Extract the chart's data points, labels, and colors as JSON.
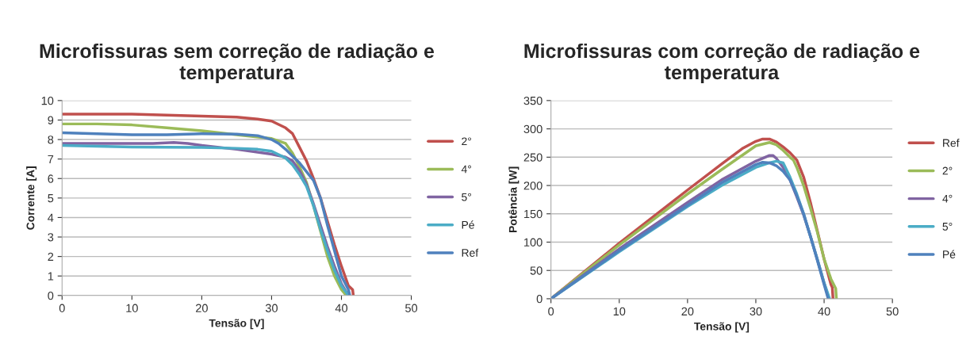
{
  "chart_data": [
    {
      "type": "line",
      "title": "Microfissuras sem correção de radiação e temperatura",
      "xlabel": "Tensão [V]",
      "ylabel": "Corrente [A]",
      "xlim": [
        0,
        50
      ],
      "xticks": [
        0,
        10,
        20,
        30,
        40,
        50
      ],
      "ylim": [
        0,
        10
      ],
      "yticks": [
        0,
        1,
        2,
        3,
        4,
        5,
        6,
        7,
        8,
        9,
        10
      ],
      "grid": "y",
      "legend": "right",
      "marker": "none",
      "line_style": "solid",
      "series": [
        {
          "name": "2°",
          "color": "#c0504d",
          "x": [
            0,
            10,
            20,
            25,
            28,
            30,
            32,
            33,
            34,
            35,
            36,
            37,
            38,
            39,
            40,
            41,
            41.6,
            41.7
          ],
          "values": [
            9.3,
            9.3,
            9.2,
            9.15,
            9.05,
            8.95,
            8.6,
            8.3,
            7.6,
            6.9,
            6.0,
            5.0,
            3.8,
            2.6,
            1.5,
            0.5,
            0.3,
            0
          ]
        },
        {
          "name": "4°",
          "color": "#9bbb59",
          "x": [
            0,
            5,
            10,
            15,
            20,
            25,
            30,
            32,
            33,
            34,
            35,
            36,
            37,
            38,
            39,
            40,
            40.7
          ],
          "values": [
            8.8,
            8.8,
            8.75,
            8.6,
            8.45,
            8.25,
            8.05,
            7.8,
            7.3,
            6.6,
            5.8,
            4.6,
            3.3,
            2.0,
            1.0,
            0.3,
            0
          ]
        },
        {
          "name": "5°",
          "color": "#8064a2",
          "x": [
            0,
            10,
            13,
            16,
            18,
            20,
            25,
            30,
            32,
            33,
            34,
            35,
            36,
            37,
            38,
            39,
            40,
            41
          ],
          "values": [
            7.8,
            7.8,
            7.8,
            7.85,
            7.8,
            7.7,
            7.5,
            7.25,
            7.1,
            6.9,
            6.4,
            5.7,
            4.7,
            3.6,
            2.5,
            1.5,
            0.6,
            0
          ]
        },
        {
          "name": "Pé",
          "color": "#4bacc6",
          "x": [
            0,
            10,
            20,
            25,
            28,
            30,
            32,
            33,
            34,
            35,
            36,
            37,
            38,
            39,
            40,
            41
          ],
          "values": [
            7.7,
            7.62,
            7.6,
            7.55,
            7.5,
            7.4,
            7.05,
            6.7,
            6.2,
            5.6,
            4.6,
            3.4,
            2.3,
            1.3,
            0.5,
            0
          ]
        },
        {
          "name": "Ref",
          "color": "#4f81bd",
          "x": [
            0,
            5,
            10,
            15,
            20,
            25,
            28,
            30,
            31,
            32,
            33,
            34,
            35,
            36,
            37,
            38,
            39,
            40,
            41,
            41.2
          ],
          "values": [
            8.35,
            8.3,
            8.25,
            8.25,
            8.3,
            8.28,
            8.2,
            8.0,
            7.8,
            7.5,
            7.15,
            6.8,
            6.35,
            5.9,
            5.0,
            3.6,
            2.3,
            1.0,
            0.3,
            0
          ]
        }
      ]
    },
    {
      "type": "line",
      "title": "Microfissuras com correção de radiação e temperatura",
      "xlabel": "Tensão [V]",
      "ylabel": "Potência [W]",
      "xlim": [
        0,
        50
      ],
      "xticks": [
        0,
        10,
        20,
        30,
        40,
        50
      ],
      "ylim": [
        0,
        350
      ],
      "yticks": [
        0,
        50,
        100,
        150,
        200,
        250,
        300,
        350
      ],
      "grid": "y",
      "legend": "right",
      "marker": "none",
      "line_style": "solid",
      "series": [
        {
          "name": "Ref",
          "color": "#c0504d",
          "x": [
            0,
            10,
            20,
            25,
            28,
            30,
            31,
            32,
            33,
            34,
            35,
            36,
            37,
            38,
            39,
            40,
            41,
            41.2,
            41.3
          ],
          "values": [
            0,
            98,
            192,
            238,
            265,
            278,
            282,
            282,
            277,
            268,
            258,
            245,
            215,
            170,
            120,
            70,
            25,
            20,
            0
          ]
        },
        {
          "name": "2°",
          "color": "#9bbb59",
          "x": [
            0,
            10,
            20,
            25,
            30,
            32,
            33,
            34,
            35,
            35.5,
            36,
            37,
            38,
            39,
            40,
            41,
            41.7,
            41.8
          ],
          "values": [
            0,
            95,
            185,
            228,
            270,
            276,
            272,
            262,
            250,
            245,
            232,
            200,
            160,
            118,
            70,
            35,
            18,
            0
          ]
        },
        {
          "name": "4°",
          "color": "#8064a2",
          "x": [
            0,
            10,
            20,
            25,
            30,
            32,
            32.5,
            33,
            34,
            35,
            36,
            37,
            38,
            39,
            40,
            40.7
          ],
          "values": [
            0,
            88,
            170,
            210,
            243,
            253,
            253,
            248,
            232,
            210,
            180,
            148,
            110,
            70,
            28,
            0
          ]
        },
        {
          "name": "5°",
          "color": "#4bacc6",
          "x": [
            0,
            10,
            20,
            25,
            30,
            32,
            33,
            34,
            35,
            36,
            37,
            38,
            39,
            40,
            40.8
          ],
          "values": [
            0,
            83,
            163,
            200,
            232,
            240,
            243,
            240,
            215,
            185,
            150,
            110,
            70,
            28,
            0
          ]
        },
        {
          "name": "Pé",
          "color": "#4f81bd",
          "x": [
            0,
            10,
            20,
            25,
            30,
            31,
            32,
            33,
            34,
            35,
            36,
            37,
            38,
            39,
            40,
            40.6
          ],
          "values": [
            0,
            85,
            165,
            205,
            237,
            241,
            240,
            235,
            225,
            210,
            182,
            150,
            110,
            68,
            25,
            0
          ]
        }
      ]
    }
  ]
}
